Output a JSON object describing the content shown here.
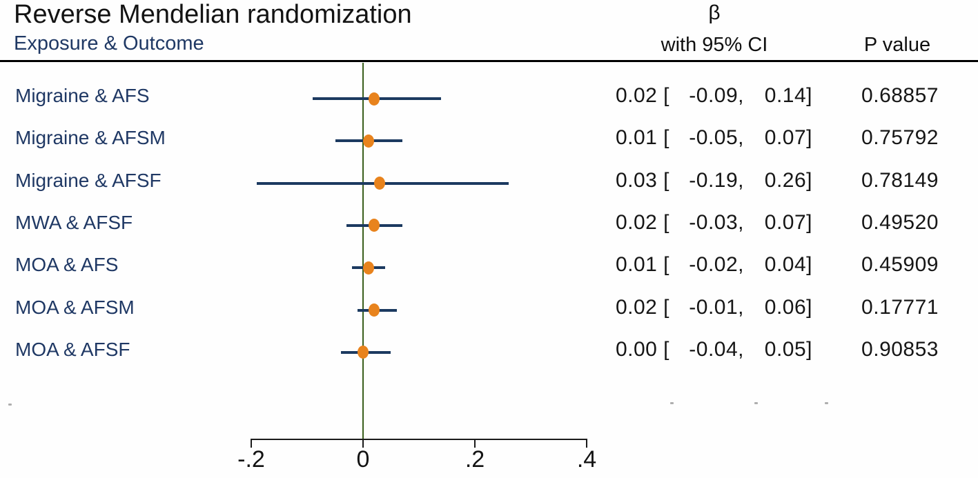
{
  "title": "Reverse Mendelian randomization",
  "columns": {
    "exposure_outcome": "Exposure & Outcome",
    "beta": "β",
    "beta_sub": "with 95% CI",
    "p_value": "P value"
  },
  "colors": {
    "estimate_dot_orange": "#e8831d",
    "ci_line_navy": "#1c3a60",
    "zero_line_green": "#3a5f1c",
    "row_label_navy": "#1f3864",
    "text_black": "#131313"
  },
  "chart_data": {
    "type": "forest",
    "title": "Reverse Mendelian randomization",
    "left_column_header": "Exposure & Outcome",
    "value_column_header": "β with 95% CI",
    "p_column_header": "P value",
    "xlim": [
      -0.24,
      0.45
    ],
    "zero_reference": 0,
    "grid": false,
    "x_ticks": [
      {
        "value": -0.2,
        "label": "-.2"
      },
      {
        "value": 0,
        "label": "0"
      },
      {
        "value": 0.2,
        "label": ".2"
      },
      {
        "value": 0.4,
        "label": ".4"
      }
    ],
    "rows": [
      {
        "label": "Migraine & AFS",
        "est": 0.02,
        "lo": -0.09,
        "hi": 0.14,
        "est_text": "0.02",
        "lo_text": "-0.09",
        "hi_text": "0.14",
        "p_text": "0.68857"
      },
      {
        "label": "Migraine & AFSM",
        "est": 0.01,
        "lo": -0.05,
        "hi": 0.07,
        "est_text": "0.01",
        "lo_text": "-0.05",
        "hi_text": "0.07",
        "p_text": "0.75792"
      },
      {
        "label": "Migraine & AFSF",
        "est": 0.03,
        "lo": -0.19,
        "hi": 0.26,
        "est_text": "0.03",
        "lo_text": "-0.19",
        "hi_text": "0.26",
        "p_text": "0.78149"
      },
      {
        "label": "MWA & AFSF",
        "est": 0.02,
        "lo": -0.03,
        "hi": 0.07,
        "est_text": "0.02",
        "lo_text": "-0.03",
        "hi_text": "0.07",
        "p_text": "0.49520"
      },
      {
        "label": "MOA & AFS",
        "est": 0.01,
        "lo": -0.02,
        "hi": 0.04,
        "est_text": "0.01",
        "lo_text": "-0.02",
        "hi_text": "0.04",
        "p_text": "0.45909"
      },
      {
        "label": "MOA & AFSM",
        "est": 0.02,
        "lo": -0.01,
        "hi": 0.06,
        "est_text": "0.02",
        "lo_text": "-0.01",
        "hi_text": "0.06",
        "p_text": "0.17771"
      },
      {
        "label": "MOA & AFSF",
        "est": 0.0,
        "lo": -0.04,
        "hi": 0.05,
        "est_text": "0.00",
        "lo_text": "-0.04",
        "hi_text": "0.05",
        "p_text": "0.90853"
      }
    ]
  }
}
